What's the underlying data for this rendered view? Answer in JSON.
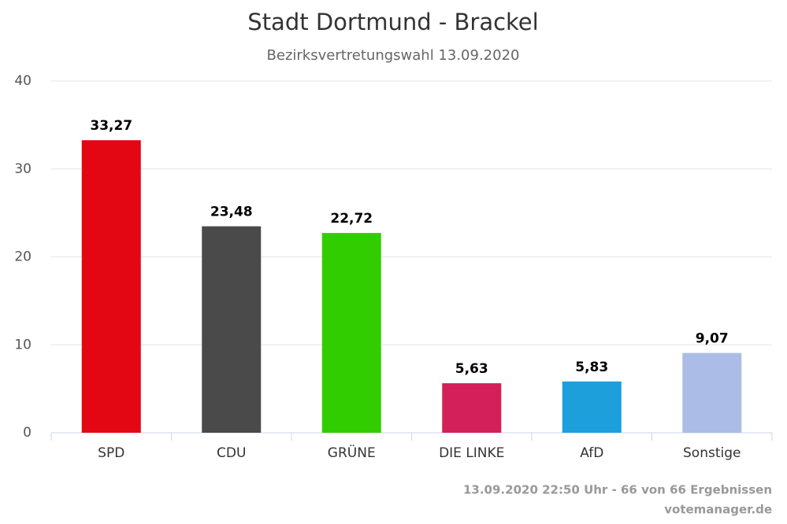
{
  "chart_data": {
    "type": "bar",
    "title": "Stadt Dortmund - Brackel",
    "subtitle": "Bezirksvertretungswahl 13.09.2020",
    "categories": [
      "SPD",
      "CDU",
      "GRÜNE",
      "DIE LINKE",
      "AfD",
      "Sonstige"
    ],
    "values": [
      33.27,
      23.48,
      22.72,
      5.63,
      5.83,
      9.07
    ],
    "value_labels": [
      "33,27",
      "23,48",
      "22,72",
      "5,63",
      "5,83",
      "9,07"
    ],
    "colors": [
      "#e30613",
      "#4a4a4a",
      "#32cd00",
      "#d3205a",
      "#1d9fdb",
      "#abbde6"
    ],
    "ylim": [
      0,
      40
    ],
    "yticks": [
      0,
      10,
      20,
      30,
      40
    ],
    "grid": true,
    "credits": [
      "13.09.2020 22:50 Uhr - 66 von 66 Ergebnissen",
      "votemanager.de"
    ]
  }
}
